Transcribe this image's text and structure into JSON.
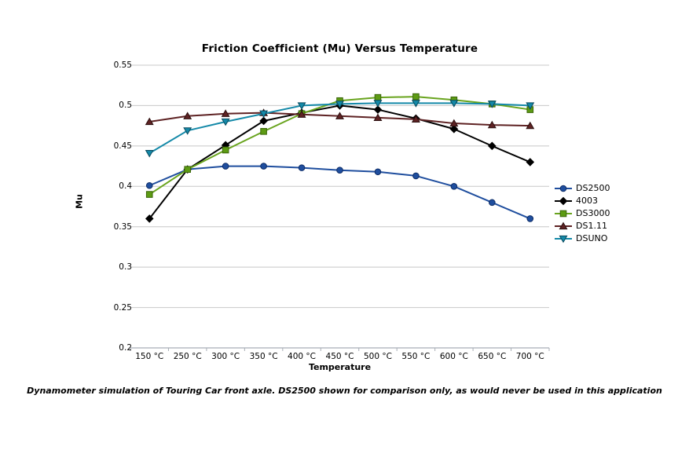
{
  "chart_data": {
    "type": "line",
    "title": "Friction Coefficient (Mu) Versus Temperature",
    "xlabel": "Temperature",
    "ylabel": "Mu",
    "categories": [
      "150 °C",
      "250 °C",
      "300 °C",
      "350 °C",
      "400 °C",
      "450 °C",
      "500 °C",
      "550 °C",
      "600 °C",
      "650 °C",
      "700 °C"
    ],
    "series": [
      {
        "name": "DS2500",
        "marker": "circle",
        "color": "#1f4e9e",
        "marker_fill": "#1f4e9e",
        "marker_stroke": "#0d2c66",
        "values": [
          0.401,
          0.421,
          0.425,
          0.425,
          0.423,
          0.42,
          0.418,
          0.413,
          0.4,
          0.38,
          0.36
        ]
      },
      {
        "name": "4003",
        "marker": "diamond",
        "color": "#000000",
        "marker_fill": "#000000",
        "marker_stroke": "#000000",
        "values": [
          0.36,
          0.421,
          0.451,
          0.481,
          0.491,
          0.5,
          0.495,
          0.484,
          0.471,
          0.45,
          0.43
        ]
      },
      {
        "name": "DS3000",
        "marker": "square",
        "color": "#69a41e",
        "marker_fill": "#5d9b13",
        "marker_stroke": "#3a650a",
        "values": [
          0.39,
          0.421,
          0.445,
          0.468,
          0.49,
          0.506,
          0.51,
          0.511,
          0.507,
          0.502,
          0.495
        ]
      },
      {
        "name": "DS1.11",
        "marker": "triangle-up",
        "color": "#5e2223",
        "marker_fill": "#5e2223",
        "marker_stroke": "#2b0f0f",
        "values": [
          0.48,
          0.487,
          0.49,
          0.491,
          0.489,
          0.487,
          0.485,
          0.483,
          0.478,
          0.476,
          0.475
        ]
      },
      {
        "name": "DSUNO",
        "marker": "triangle-down",
        "color": "#1489a8",
        "marker_fill": "#1489a8",
        "marker_stroke": "#0a4a5e",
        "values": [
          0.441,
          0.469,
          0.48,
          0.49,
          0.5,
          0.502,
          0.503,
          0.503,
          0.503,
          0.502,
          0.5
        ]
      }
    ],
    "ylim": [
      0.2,
      0.55
    ],
    "ytick_step": 0.05,
    "y_tick_labels": [
      "0.55",
      "0.5",
      "0.45",
      "0.4",
      "0.35",
      "0.3",
      "0.25",
      "0.2"
    ],
    "grid": true,
    "legend_position": "right",
    "grid_color": "#c8c8c8",
    "axis_color": "#a8aeb6"
  },
  "caption": "Dynamometer simulation of Touring Car front axle. DS2500 shown for comparison only, as would never be used in this application"
}
